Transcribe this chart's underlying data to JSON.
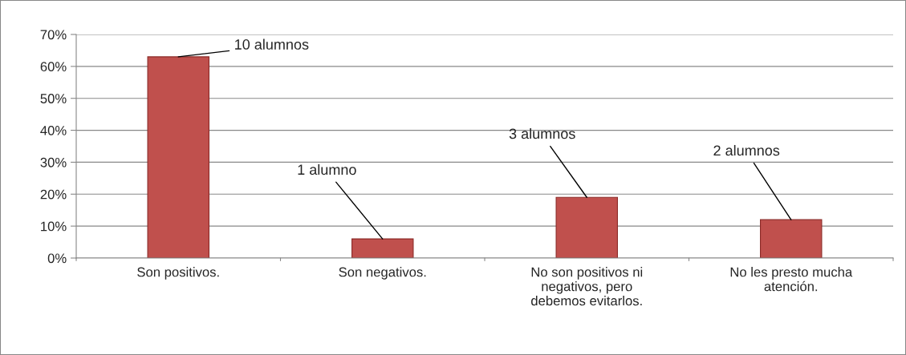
{
  "chart_data": {
    "type": "bar",
    "categories": [
      "Son positivos.",
      "Son negativos.",
      "No son positivos ni\nnegativos, pero\ndebemos evitarlos.",
      "No les presto mucha\natención."
    ],
    "values": [
      63,
      6,
      19,
      12
    ],
    "color": "#c0504d",
    "ylim": [
      0,
      70
    ],
    "yticks": [
      {
        "value": 0,
        "label": "0%"
      },
      {
        "value": 10,
        "label": "10%"
      },
      {
        "value": 20,
        "label": "20%"
      },
      {
        "value": 30,
        "label": "30%"
      },
      {
        "value": 40,
        "label": "40%"
      },
      {
        "value": 50,
        "label": "50%"
      },
      {
        "value": 60,
        "label": "60%"
      },
      {
        "value": 70,
        "label": "70%"
      }
    ],
    "grid": "y",
    "legend": false,
    "annotations": [
      {
        "text": "10 alumnos",
        "x": "Son positivos.",
        "y": 63
      },
      {
        "text": "1 alumno",
        "x": "Son negativos.",
        "y": 6
      },
      {
        "text": "3 alumnos",
        "x": "No son positivos ni\nnegativos, pero\ndebemos evitarlos.",
        "y": 19
      },
      {
        "text": "2 alumnos",
        "x": "No les presto mucha\natención.",
        "y": 12
      }
    ]
  }
}
